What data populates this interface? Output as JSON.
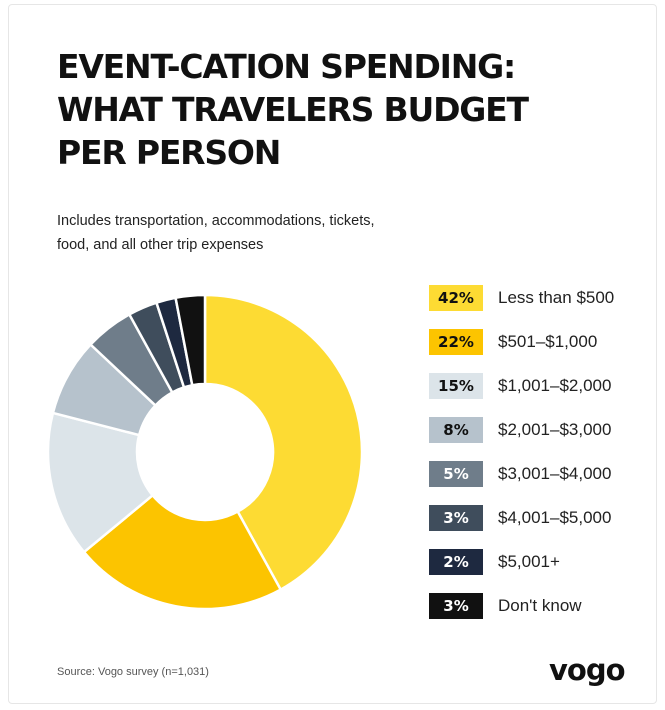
{
  "title_lines": [
    "EVENT-CATION SPENDING:",
    "WHAT TRAVELERS BUDGET",
    "PER PERSON"
  ],
  "subtitle_lines": [
    "Includes transportation, accommodations, tickets,",
    "food, and all other trip expenses"
  ],
  "source": "Source: Vogo survey (n=1,031)",
  "brand": "vogo",
  "chart_data": {
    "type": "pie",
    "variant": "donut",
    "legend_position": "right",
    "categories": [
      "Less than $500",
      "$501–$1,000",
      "$1,001–$2,000",
      "$2,001–$3,000",
      "$3,001–$4,000",
      "$4,001–$5,000",
      "$5,001+",
      "Don't know"
    ],
    "values": [
      42,
      22,
      15,
      8,
      5,
      3,
      2,
      3
    ],
    "value_labels": [
      "42%",
      "22%",
      "15%",
      "8%",
      "5%",
      "3%",
      "2%",
      "3%"
    ],
    "unit": "%",
    "colors": [
      "#FDDB33",
      "#FCC400",
      "#DCE4E9",
      "#B6C2CC",
      "#6F7D8A",
      "#3F4D5C",
      "#1E2940",
      "#111111"
    ],
    "label_colors": [
      "#111111",
      "#111111",
      "#111111",
      "#111111",
      "#ffffff",
      "#ffffff",
      "#ffffff",
      "#ffffff"
    ]
  }
}
